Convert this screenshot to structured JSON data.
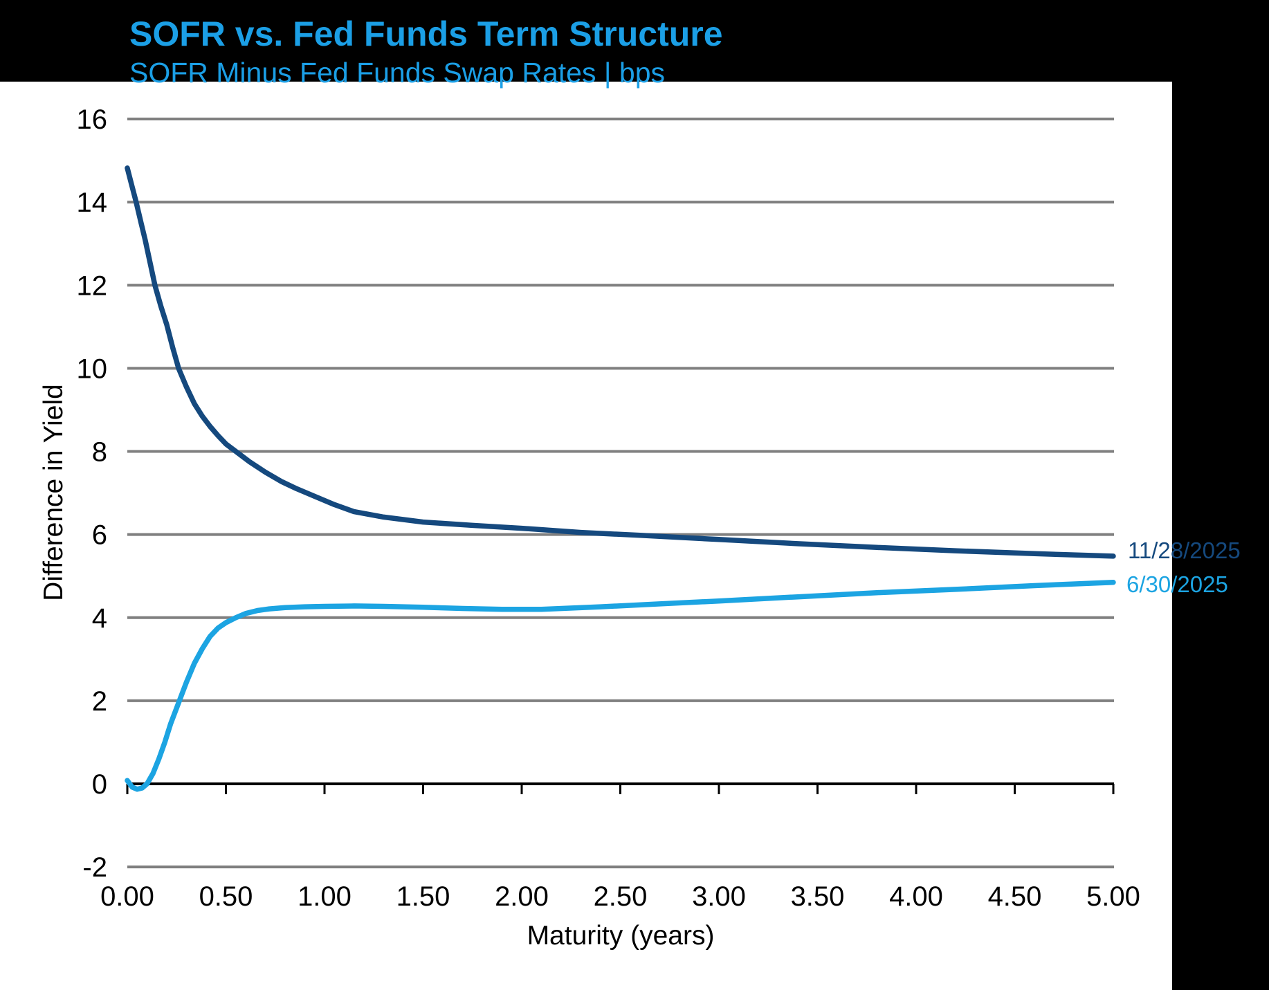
{
  "header": {
    "title": "SOFR vs. Fed Funds Term Structure",
    "subtitle": "SOFR Minus Fed Funds Swap Rates | bps"
  },
  "colors": {
    "background": "#000000",
    "panel": "#FFFFFF",
    "title_blue": "#1B9FE6",
    "navy": "#15497E",
    "light_blue": "#1CA4E2",
    "gridline": "#7F7F7F",
    "axis": "#000000",
    "tick_text": "#000000"
  },
  "chart_data": {
    "type": "line",
    "title": "SOFR vs. Fed Funds Term Structure",
    "subtitle": "SOFR Minus Fed Funds Swap Rates | bps",
    "xlabel": "Maturity (years)",
    "ylabel": "Difference in Yield",
    "xlim": [
      0,
      5
    ],
    "ylim": [
      -2,
      16
    ],
    "grid": "horizontal",
    "legend_position": "right-end-labels",
    "x_ticks": [
      0,
      0.5,
      1.0,
      1.5,
      2.0,
      2.5,
      3.0,
      3.5,
      4.0,
      4.5,
      5.0
    ],
    "x_tick_labels": [
      "0.00",
      "0.50",
      "1.00",
      "1.50",
      "2.00",
      "2.50",
      "3.00",
      "3.50",
      "4.00",
      "4.50",
      "5.00"
    ],
    "y_ticks": [
      16,
      14,
      12,
      10,
      8,
      6,
      4,
      2,
      0,
      -2
    ],
    "y_tick_labels": [
      "16",
      "14",
      "12",
      "10",
      "8",
      "6",
      "4",
      "2",
      "0",
      "-2"
    ],
    "y_gridlines": [
      16,
      14,
      12,
      10,
      8,
      6,
      4,
      2,
      -2
    ],
    "series": [
      {
        "name": "11/28/2025",
        "color_key": "navy",
        "x": [
          0,
          0.02,
          0.045,
          0.07,
          0.09,
          0.115,
          0.14,
          0.17,
          0.2,
          0.23,
          0.26,
          0.3,
          0.34,
          0.38,
          0.42,
          0.46,
          0.5,
          0.55,
          0.62,
          0.7,
          0.78,
          0.86,
          0.95,
          1.05,
          1.15,
          1.3,
          1.5,
          1.75,
          2.0,
          2.3,
          2.6,
          3.0,
          3.4,
          3.8,
          4.2,
          4.6,
          5.0
        ],
        "y": [
          14.82,
          14.45,
          14.0,
          13.5,
          13.1,
          12.55,
          12.0,
          11.5,
          11.05,
          10.5,
          10.0,
          9.55,
          9.15,
          8.85,
          8.6,
          8.38,
          8.18,
          8.0,
          7.75,
          7.5,
          7.28,
          7.1,
          6.92,
          6.72,
          6.55,
          6.42,
          6.3,
          6.22,
          6.15,
          6.05,
          5.98,
          5.88,
          5.78,
          5.69,
          5.61,
          5.54,
          5.48
        ]
      },
      {
        "name": "6/30/2025",
        "color_key": "light_blue",
        "x": [
          0,
          0.025,
          0.05,
          0.075,
          0.1,
          0.13,
          0.16,
          0.19,
          0.22,
          0.26,
          0.3,
          0.34,
          0.38,
          0.42,
          0.46,
          0.5,
          0.55,
          0.6,
          0.66,
          0.72,
          0.8,
          0.9,
          1.0,
          1.15,
          1.3,
          1.5,
          1.7,
          1.9,
          2.1,
          2.4,
          2.7,
          3.0,
          3.4,
          3.8,
          4.2,
          4.6,
          5.0
        ],
        "y": [
          0.08,
          -0.08,
          -0.13,
          -0.1,
          0.0,
          0.25,
          0.6,
          1.0,
          1.45,
          1.95,
          2.45,
          2.9,
          3.25,
          3.55,
          3.75,
          3.88,
          4.0,
          4.1,
          4.17,
          4.21,
          4.24,
          4.26,
          4.27,
          4.28,
          4.27,
          4.25,
          4.22,
          4.2,
          4.2,
          4.26,
          4.33,
          4.4,
          4.5,
          4.6,
          4.68,
          4.77,
          4.85
        ]
      }
    ]
  },
  "series_end_labels": [
    {
      "text": "11/28/2025"
    },
    {
      "text": "6/30/2025"
    }
  ]
}
